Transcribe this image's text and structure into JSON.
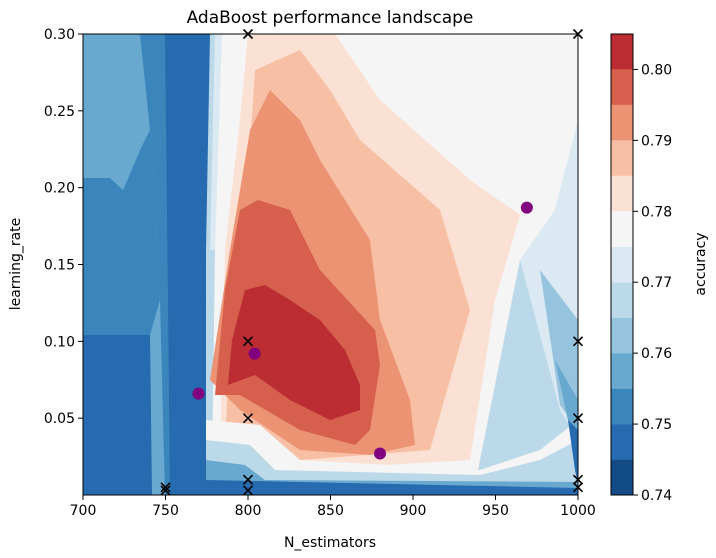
{
  "chart_data": {
    "type": "heatmap",
    "title": "AdaBoost performance landscape",
    "xlabel": "N_estimators",
    "ylabel": "learning_rate",
    "xlim": [
      700,
      1000
    ],
    "ylim": [
      0.0,
      0.3
    ],
    "x_ticks": [
      700,
      750,
      800,
      850,
      900,
      950,
      1000
    ],
    "x_tick_labels": [
      "700",
      "750",
      "800",
      "850",
      "900",
      "950",
      "1000"
    ],
    "y_ticks": [
      0.05,
      0.1,
      0.15,
      0.2,
      0.25,
      0.3
    ],
    "y_tick_labels": [
      "0.05",
      "0.10",
      "0.15",
      "0.20",
      "0.25",
      "0.30"
    ],
    "colorbar": {
      "label": "accuracy",
      "colormap": "RdBu_r",
      "range": [
        0.74,
        0.805
      ],
      "ticks": [
        0.74,
        0.75,
        0.76,
        0.77,
        0.78,
        0.79,
        0.8
      ],
      "tick_labels": [
        "0.74",
        "0.75",
        "0.76",
        "0.77",
        "0.78",
        "0.79",
        "0.80"
      ],
      "levels": [
        0.74,
        0.745,
        0.75,
        0.755,
        0.76,
        0.765,
        0.77,
        0.775,
        0.78,
        0.785,
        0.79,
        0.795,
        0.8,
        0.805
      ],
      "colors": [
        "#134b87",
        "#266aaf",
        "#3a86bc",
        "#69a8cf",
        "#96c4df",
        "#bcd9ea",
        "#dbe9f2",
        "#f5f5f5",
        "#fbe1d3",
        "#f7c0a5",
        "#ec9374",
        "#d6604d",
        "#bc2d33",
        "#800b27"
      ]
    },
    "sampled_points": {
      "marker": "x",
      "color": "#000000",
      "points": [
        [
          750,
          0.005
        ],
        [
          750,
          0.003
        ],
        [
          800,
          0.3
        ],
        [
          800,
          0.1
        ],
        [
          800,
          0.05
        ],
        [
          800,
          0.01
        ],
        [
          800,
          0.003
        ],
        [
          1000,
          0.3
        ],
        [
          1000,
          0.1
        ],
        [
          1000,
          0.05
        ],
        [
          1000,
          0.01
        ],
        [
          1000,
          0.005
        ]
      ]
    },
    "highlight_points": {
      "marker": "o",
      "color": "#800080",
      "points": [
        [
          770,
          0.066
        ],
        [
          804,
          0.092
        ],
        [
          880,
          0.027
        ],
        [
          969,
          0.187
        ]
      ]
    }
  }
}
